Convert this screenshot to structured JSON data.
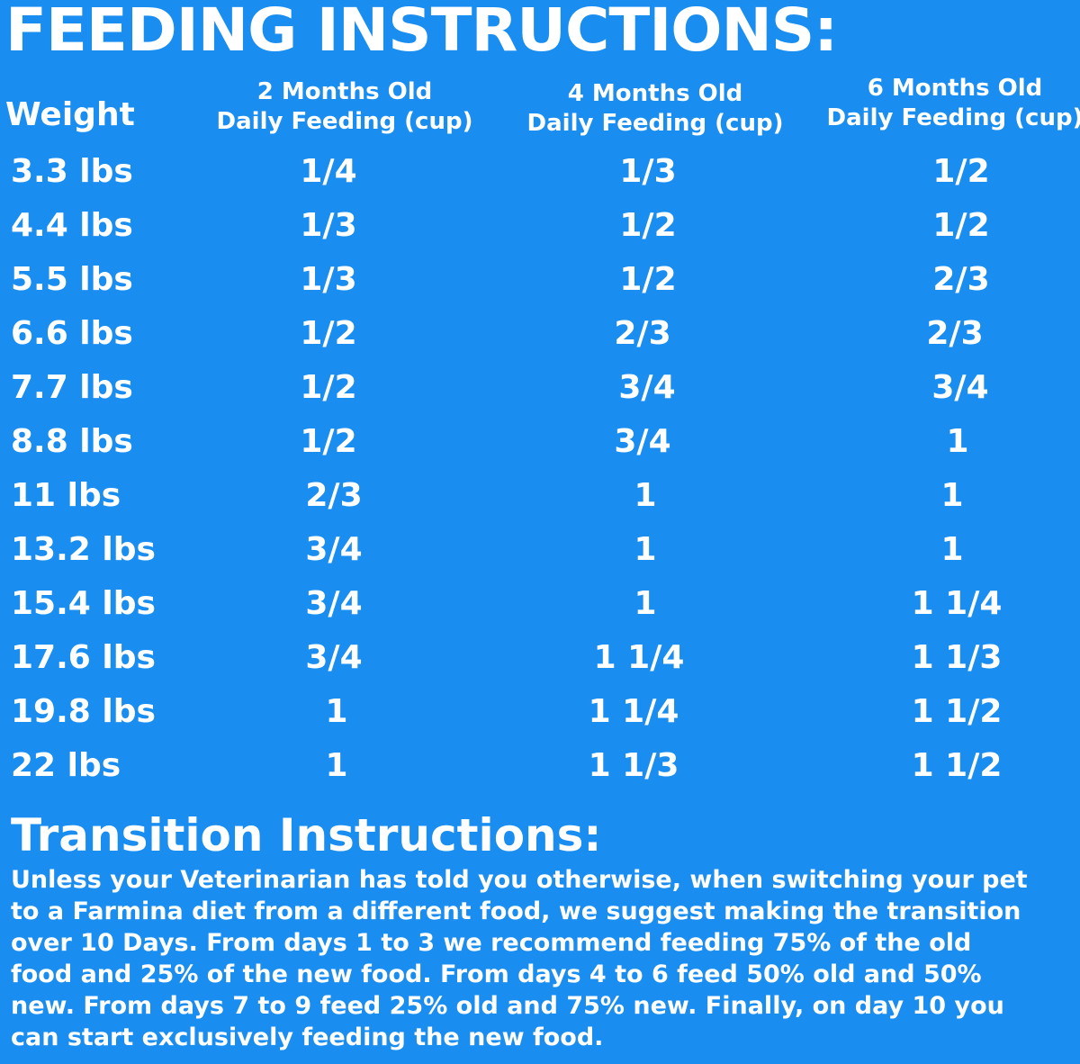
{
  "title": "FEEDING INSTRUCTIONS:",
  "table": {
    "weight_header": "Weight",
    "columns": [
      {
        "line1": "2 Months Old",
        "line2": "Daily Feeding (cup)"
      },
      {
        "line1": "4 Months Old",
        "line2": "Daily Feeding (cup)"
      },
      {
        "line1": "6 Months Old",
        "line2": "Daily Feeding (cup)"
      }
    ],
    "rows": [
      {
        "weight": "3.3 lbs",
        "m2": "1/4",
        "m4": "1/3",
        "m6": "1/2"
      },
      {
        "weight": "4.4 lbs",
        "m2": "1/3",
        "m4": "1/2",
        "m6": "1/2"
      },
      {
        "weight": "5.5 lbs",
        "m2": "1/3",
        "m4": "1/2",
        "m6": "2/3"
      },
      {
        "weight": "6.6 lbs",
        "m2": "1/2",
        "m4": "2/3",
        "m6": "2/3"
      },
      {
        "weight": "7.7 lbs",
        "m2": "1/2",
        "m4": "3/4",
        "m6": "3/4"
      },
      {
        "weight": "8.8 lbs",
        "m2": "1/2",
        "m4": "3/4",
        "m6": "1"
      },
      {
        "weight": "11 lbs",
        "m2": "2/3",
        "m4": "1",
        "m6": "1"
      },
      {
        "weight": "13.2 lbs",
        "m2": "3/4",
        "m4": "1",
        "m6": "1"
      },
      {
        "weight": "15.4 lbs",
        "m2": "3/4",
        "m4": "1",
        "m6": "1 1/4"
      },
      {
        "weight": "17.6 lbs",
        "m2": "3/4",
        "m4": "1 1/4",
        "m6": "1 1/3"
      },
      {
        "weight": "19.8 lbs",
        "m2": "1",
        "m4": "1 1/4",
        "m6": "1 1/2"
      },
      {
        "weight": "22 lbs",
        "m2": "1",
        "m4": "1 1/3",
        "m6": "1 1/2"
      }
    ]
  },
  "transition": {
    "title": "Transition Instructions:",
    "lines": [
      "Unless your Veterinarian has told you otherwise, when switching your pet",
      "to a Farmina diet from a different food, we suggest making the transition",
      "over 10 Days. From days 1 to 3 we recommend feeding 75% of the old",
      "food and 25% of the new food. From days 4 to 6 feed 50% old and 50%",
      "new. From days 7 to 9 feed 25% old and 75% new. Finally, on day 10 you",
      "can start exclusively feeding the new food."
    ]
  },
  "colors": {
    "background": "#1a8df0",
    "text": "#ffffff"
  }
}
